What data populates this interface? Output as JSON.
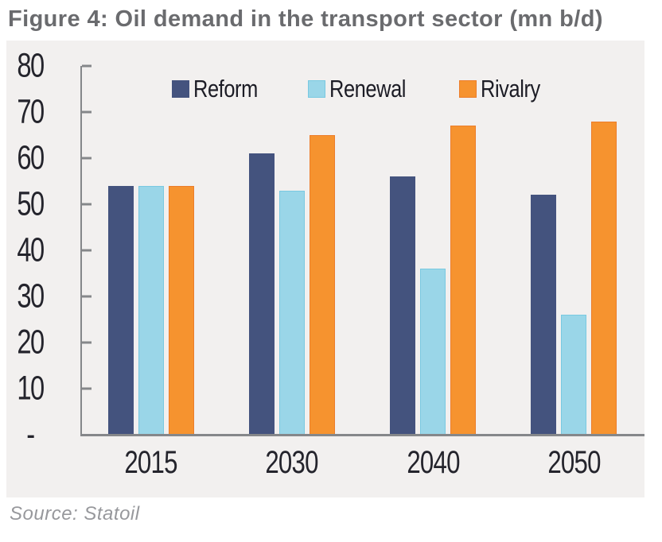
{
  "title": "Figure 4: Oil demand in the transport sector (mn b/d)",
  "source": "Source: Statoil",
  "colors": {
    "page_bg": "#FFFFFF",
    "panel_bg": "#F2F0EF",
    "axis": "#85878A",
    "title_text": "#6A6B6E",
    "tick_text": "#24242C",
    "legend_text": "#1C1C25",
    "source_text": "#97989C"
  },
  "chart_data": {
    "type": "bar",
    "title": "Figure 4: Oil demand in the transport sector (mn b/d)",
    "categories": [
      "2015",
      "2030",
      "2040",
      "2050"
    ],
    "series": [
      {
        "name": "Reform",
        "color": "#44537E",
        "border": "#44537E",
        "values": [
          54,
          61,
          56,
          52
        ]
      },
      {
        "name": "Renewal",
        "color": "#9AD6E8",
        "border": "#79C9E1",
        "values": [
          54,
          53,
          36,
          26
        ]
      },
      {
        "name": "Rivalry",
        "color": "#F6932F",
        "border": "#EC7D2B",
        "values": [
          54,
          65,
          67,
          68
        ]
      }
    ],
    "xlabel": "",
    "ylabel": "",
    "ylim": [
      0,
      80
    ],
    "ytick_step": 10,
    "ytick_labels": [
      "80",
      "70",
      "60",
      "50",
      "40",
      "30",
      "20",
      "10",
      "-"
    ],
    "zero_label": "-",
    "grid": false,
    "legend_position": "top-center"
  }
}
